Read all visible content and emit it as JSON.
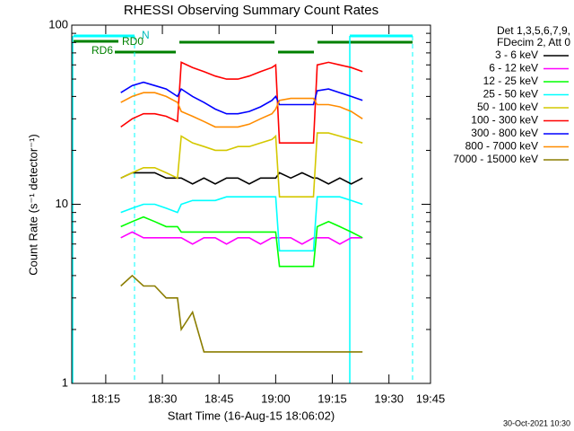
{
  "chart_data": {
    "type": "line",
    "title": "RHESSI Observing Summary Count Rates",
    "xlabel": "Start Time (16-Aug-15 18:06:02)",
    "ylabel": "Count Rate (s⁻¹ detector⁻¹)",
    "legend_header": [
      "Det 1,3,5,6,7,9,",
      "FDecim 2, Att 0"
    ],
    "footer": "30-Oct-2021 10:30",
    "annotations": [
      "N",
      "RD0",
      "RD6"
    ],
    "log_y": true,
    "grid": false,
    "legend": "right",
    "xlim": [
      "18:06",
      "19:41"
    ],
    "xticks": [
      "18:15",
      "18:30",
      "18:45",
      "19:00",
      "19:15",
      "19:30",
      "19:45"
    ],
    "ylim": [
      1,
      100
    ],
    "yticks": [
      1,
      10,
      100
    ],
    "x": [
      "18:19",
      "18:22",
      "18:25",
      "18:28",
      "18:31",
      "18:34",
      "18:35",
      "18:38",
      "18:41",
      "18:44",
      "18:47",
      "18:50",
      "18:53",
      "18:56",
      "18:59",
      "19:00",
      "19:01",
      "19:04",
      "19:07",
      "19:10",
      "19:11",
      "19:14",
      "19:17",
      "19:20",
      "19:23"
    ],
    "series": [
      {
        "name": "3 - 6 keV",
        "color": "#000000",
        "values": [
          14,
          15,
          15,
          15,
          14,
          14,
          14,
          13,
          14,
          13,
          14,
          14,
          13,
          14,
          14,
          14,
          15,
          14,
          15,
          14,
          14,
          13,
          14,
          13,
          14
        ]
      },
      {
        "name": "6 - 12 keV",
        "color": "#ff00ff",
        "values": [
          6.5,
          7,
          6.5,
          6.5,
          6.5,
          6.5,
          6.5,
          6,
          6.5,
          6.5,
          6,
          6.5,
          6.5,
          6,
          6.5,
          6.5,
          6.5,
          6.5,
          6,
          6.5,
          6.5,
          6.5,
          6,
          6.5,
          6.5
        ]
      },
      {
        "name": "12 - 25 keV",
        "color": "#00ff00",
        "values": [
          7.5,
          8,
          8.5,
          8,
          7.5,
          7.5,
          7,
          7,
          7,
          7,
          7,
          7,
          7,
          7,
          7,
          7,
          4.5,
          4.5,
          4.5,
          4.5,
          7.5,
          8,
          7.5,
          7,
          6.5
        ]
      },
      {
        "name": "25 - 50 keV",
        "color": "#00ffff",
        "values": [
          9,
          9.5,
          10,
          10,
          9.5,
          9,
          10,
          10.5,
          10.5,
          10.5,
          11,
          11,
          11,
          11,
          11,
          11,
          5.5,
          5.5,
          5.5,
          5.5,
          11,
          11,
          11,
          10.5,
          10
        ]
      },
      {
        "name": "50 - 100 keV",
        "color": "#d4c800",
        "values": [
          14,
          15,
          16,
          16,
          15,
          14,
          24,
          22,
          21,
          20,
          20,
          21,
          21,
          22,
          23,
          24,
          11,
          11,
          11,
          11,
          25,
          25,
          24,
          23,
          22
        ]
      },
      {
        "name": "100 - 300 keV",
        "color": "#ff0000",
        "values": [
          27,
          30,
          32,
          32,
          31,
          29,
          62,
          58,
          55,
          52,
          50,
          50,
          52,
          55,
          58,
          60,
          22,
          22,
          22,
          22,
          60,
          62,
          60,
          58,
          55
        ]
      },
      {
        "name": "300 - 800 keV",
        "color": "#0000ff",
        "values": [
          42,
          46,
          48,
          46,
          44,
          40,
          44,
          40,
          37,
          34,
          32,
          32,
          33,
          35,
          38,
          40,
          36,
          36,
          36,
          36,
          43,
          44,
          42,
          40,
          38
        ]
      },
      {
        "name": "800 - 7000 keV",
        "color": "#ff8c00",
        "values": [
          37,
          40,
          42,
          42,
          40,
          37,
          33,
          31,
          29,
          27,
          27,
          27,
          28,
          30,
          32,
          34,
          38,
          39,
          39,
          39,
          36,
          36,
          35,
          33,
          30
        ]
      },
      {
        "name": "7000 - 15000 keV",
        "color": "#8b7d00",
        "values": [
          3.5,
          4,
          3.5,
          3.5,
          3,
          3,
          2,
          2.5,
          1.5,
          1.5,
          1.5,
          1.5,
          1.5,
          1.5,
          1.5,
          1.5,
          1.5,
          1.5,
          1.5,
          1.5,
          1.5,
          1.5,
          1.5,
          1.5,
          1.5
        ]
      }
    ]
  }
}
